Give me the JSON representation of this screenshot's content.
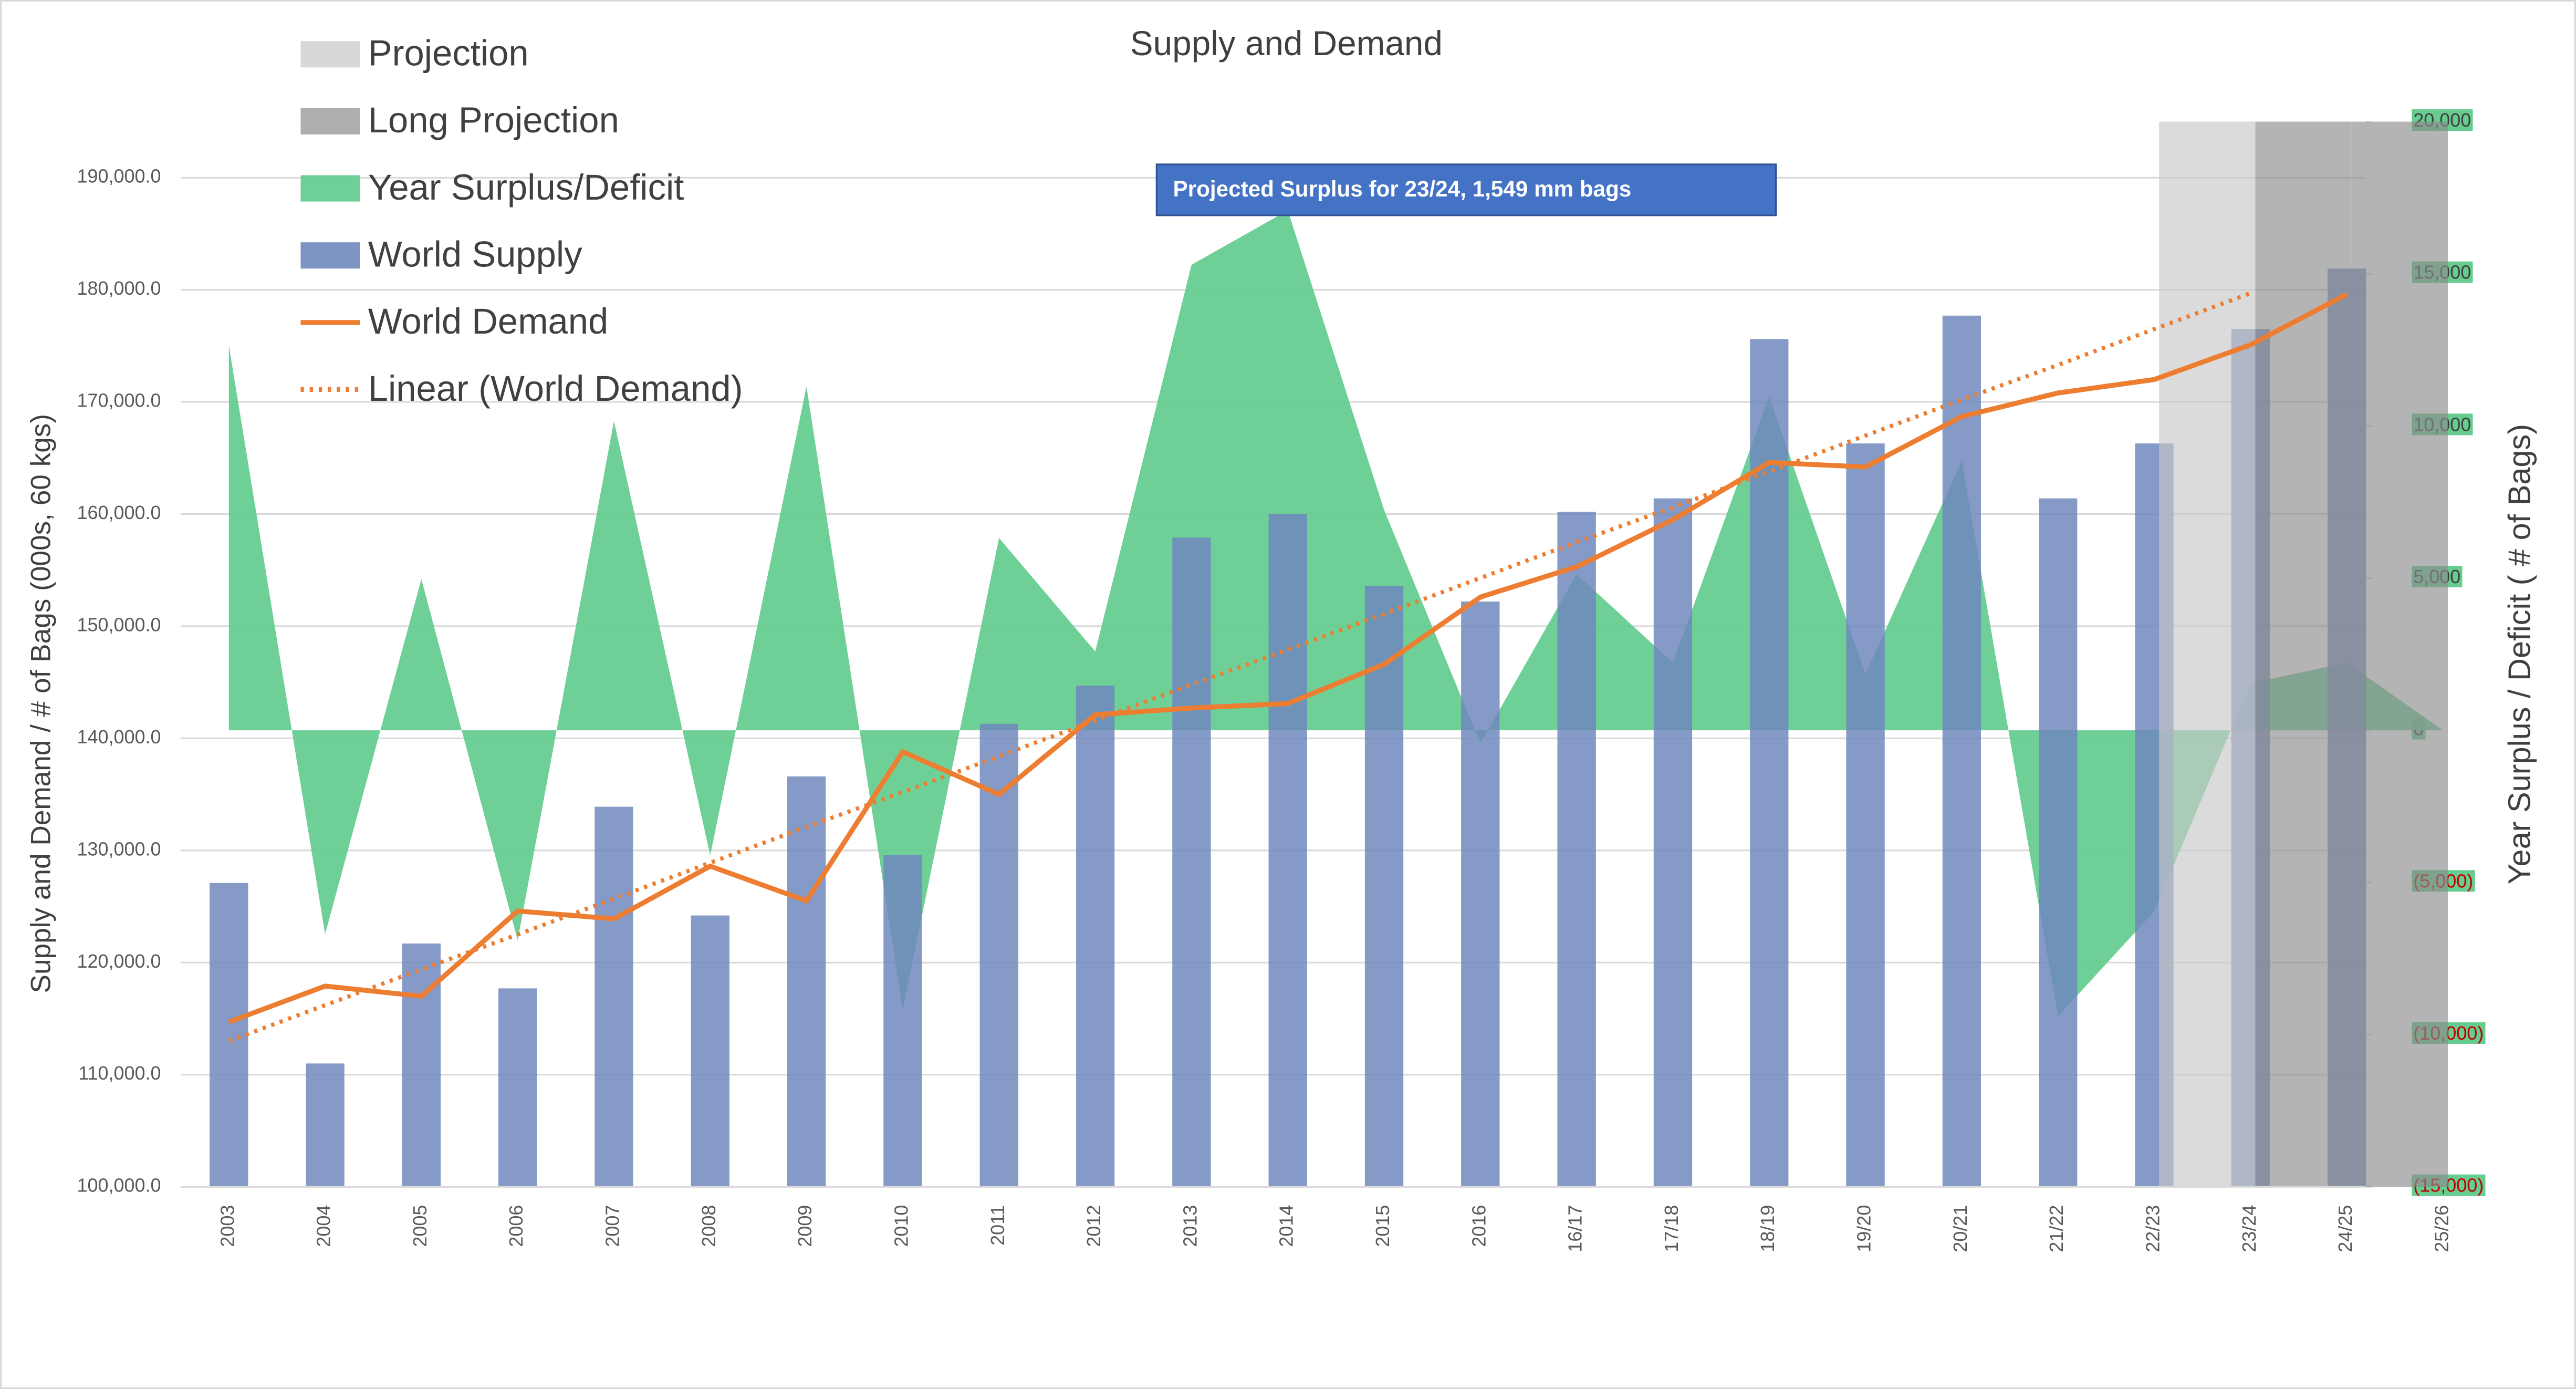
{
  "chart_data": {
    "type": "combo",
    "title": "Supply and Demand",
    "y_label": "Supply and Demand / # of Bags (000s, 60 kgs)",
    "y2_label": "Year Surplus / Deficit ( # of Bags)",
    "annotation": "Projected Surplus for 23/24, 1,549 mm bags",
    "categories": [
      "2003",
      "2004",
      "2005",
      "2006",
      "2007",
      "2008",
      "2009",
      "2010",
      "2011",
      "2012",
      "2013",
      "2014",
      "2015",
      "2016",
      "16/17",
      "17/18",
      "18/19",
      "19/20",
      "20/21",
      "21/22",
      "22/23",
      "23/24",
      "24/25",
      "25/26"
    ],
    "ylim": [
      100000,
      195000
    ],
    "yticks": [
      {
        "value": 100000,
        "label": "100,000.0"
      },
      {
        "value": 110000,
        "label": "110,000.0"
      },
      {
        "value": 120000,
        "label": "120,000.0"
      },
      {
        "value": 130000,
        "label": "130,000.0"
      },
      {
        "value": 140000,
        "label": "140,000.0"
      },
      {
        "value": 150000,
        "label": "150,000.0"
      },
      {
        "value": 160000,
        "label": "160,000.0"
      },
      {
        "value": 170000,
        "label": "170,000.0"
      },
      {
        "value": 180000,
        "label": "180,000.0"
      },
      {
        "value": 190000,
        "label": "190,000.0"
      }
    ],
    "y2lim": [
      -15000,
      20000
    ],
    "y2ticks": [
      {
        "value": -15000,
        "label": "(15,000)"
      },
      {
        "value": -10000,
        "label": "(10,000)"
      },
      {
        "value": -5000,
        "label": "(5,000)"
      },
      0,
      {
        "value": 5000,
        "label": "5,000"
      },
      {
        "value": 10000,
        "label": "10,000"
      },
      {
        "value": 15000,
        "label": "15,000"
      },
      {
        "value": 20000,
        "label": "20,000"
      }
    ],
    "grid": true,
    "legend": "upper left",
    "series": [
      {
        "name": "Projection",
        "type": "band",
        "axis": "y2",
        "color": "#c8c8c8",
        "values": [
          null,
          null,
          null,
          null,
          null,
          null,
          null,
          null,
          null,
          null,
          null,
          null,
          null,
          null,
          null,
          null,
          null,
          null,
          null,
          null,
          null,
          20000,
          null,
          null
        ]
      },
      {
        "name": "Long Projection",
        "type": "band",
        "axis": "y2",
        "color": "#8c8c8c",
        "values": [
          null,
          null,
          null,
          null,
          null,
          null,
          null,
          null,
          null,
          null,
          null,
          null,
          null,
          null,
          null,
          null,
          null,
          null,
          null,
          null,
          null,
          null,
          20000,
          20000
        ]
      },
      {
        "name": "Year Surplus/Deficit",
        "type": "area",
        "axis": "y2",
        "color": "#5fcb8c",
        "values": [
          12650,
          -6700,
          4970,
          -6900,
          10160,
          -4110,
          11300,
          -9190,
          6320,
          2590,
          15300,
          17080,
          7240,
          -430,
          5130,
          2220,
          10970,
          1840,
          8860,
          -9400,
          -5950,
          1549,
          2220,
          0
        ]
      },
      {
        "name": "World Supply",
        "type": "bar",
        "color": "#7088bd",
        "values": [
          127100,
          111000,
          121700,
          117700,
          133900,
          124200,
          136600,
          129600,
          141300,
          144700,
          157900,
          160000,
          153600,
          152200,
          160200,
          161400,
          175600,
          166300,
          177700,
          161400,
          166300,
          176500,
          181900,
          null
        ]
      },
      {
        "name": "World Demand",
        "type": "line",
        "color": "#ed7d31",
        "values": [
          114700,
          117900,
          117000,
          124600,
          123900,
          128600,
          125500,
          138800,
          135000,
          142100,
          142700,
          143100,
          146600,
          152600,
          155300,
          159500,
          164600,
          164200,
          168700,
          170800,
          172000,
          175100,
          179600,
          null
        ]
      },
      {
        "name": "Linear (World Demand)",
        "type": "line",
        "dashed": true,
        "color": "#ed7d31",
        "values": [
          113000,
          116200,
          119400,
          122500,
          125700,
          128900,
          132100,
          135200,
          138400,
          141600,
          144800,
          147900,
          151100,
          154300,
          157500,
          160600,
          163800,
          167000,
          170200,
          173300,
          176500,
          179700,
          null,
          null
        ]
      }
    ],
    "y2tick_fill": "#66cc8f",
    "y2tick_negative_color": "#c00000",
    "annotation_color": "#4472c4"
  }
}
